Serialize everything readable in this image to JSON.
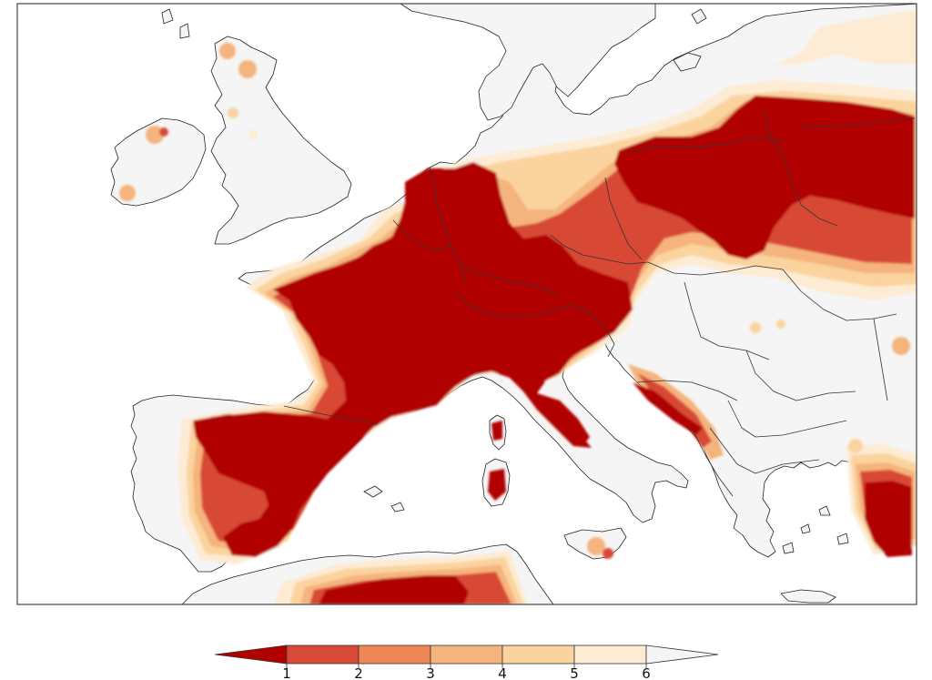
{
  "map": {
    "colors": {
      "land": "#f5f5f5",
      "sea": "#ffffff",
      "coast": "#222222",
      "border": "#333333",
      "frame": "#444444"
    }
  },
  "colorbar": {
    "ticks": [
      "1",
      "2",
      "3",
      "4",
      "5",
      "6"
    ],
    "below_color": "#b00000",
    "bin_colors": [
      "#d84a36",
      "#ee8655",
      "#f5b47e",
      "#fbd39e",
      "#fdebd3"
    ],
    "above_color": "#f5f5f5"
  }
}
